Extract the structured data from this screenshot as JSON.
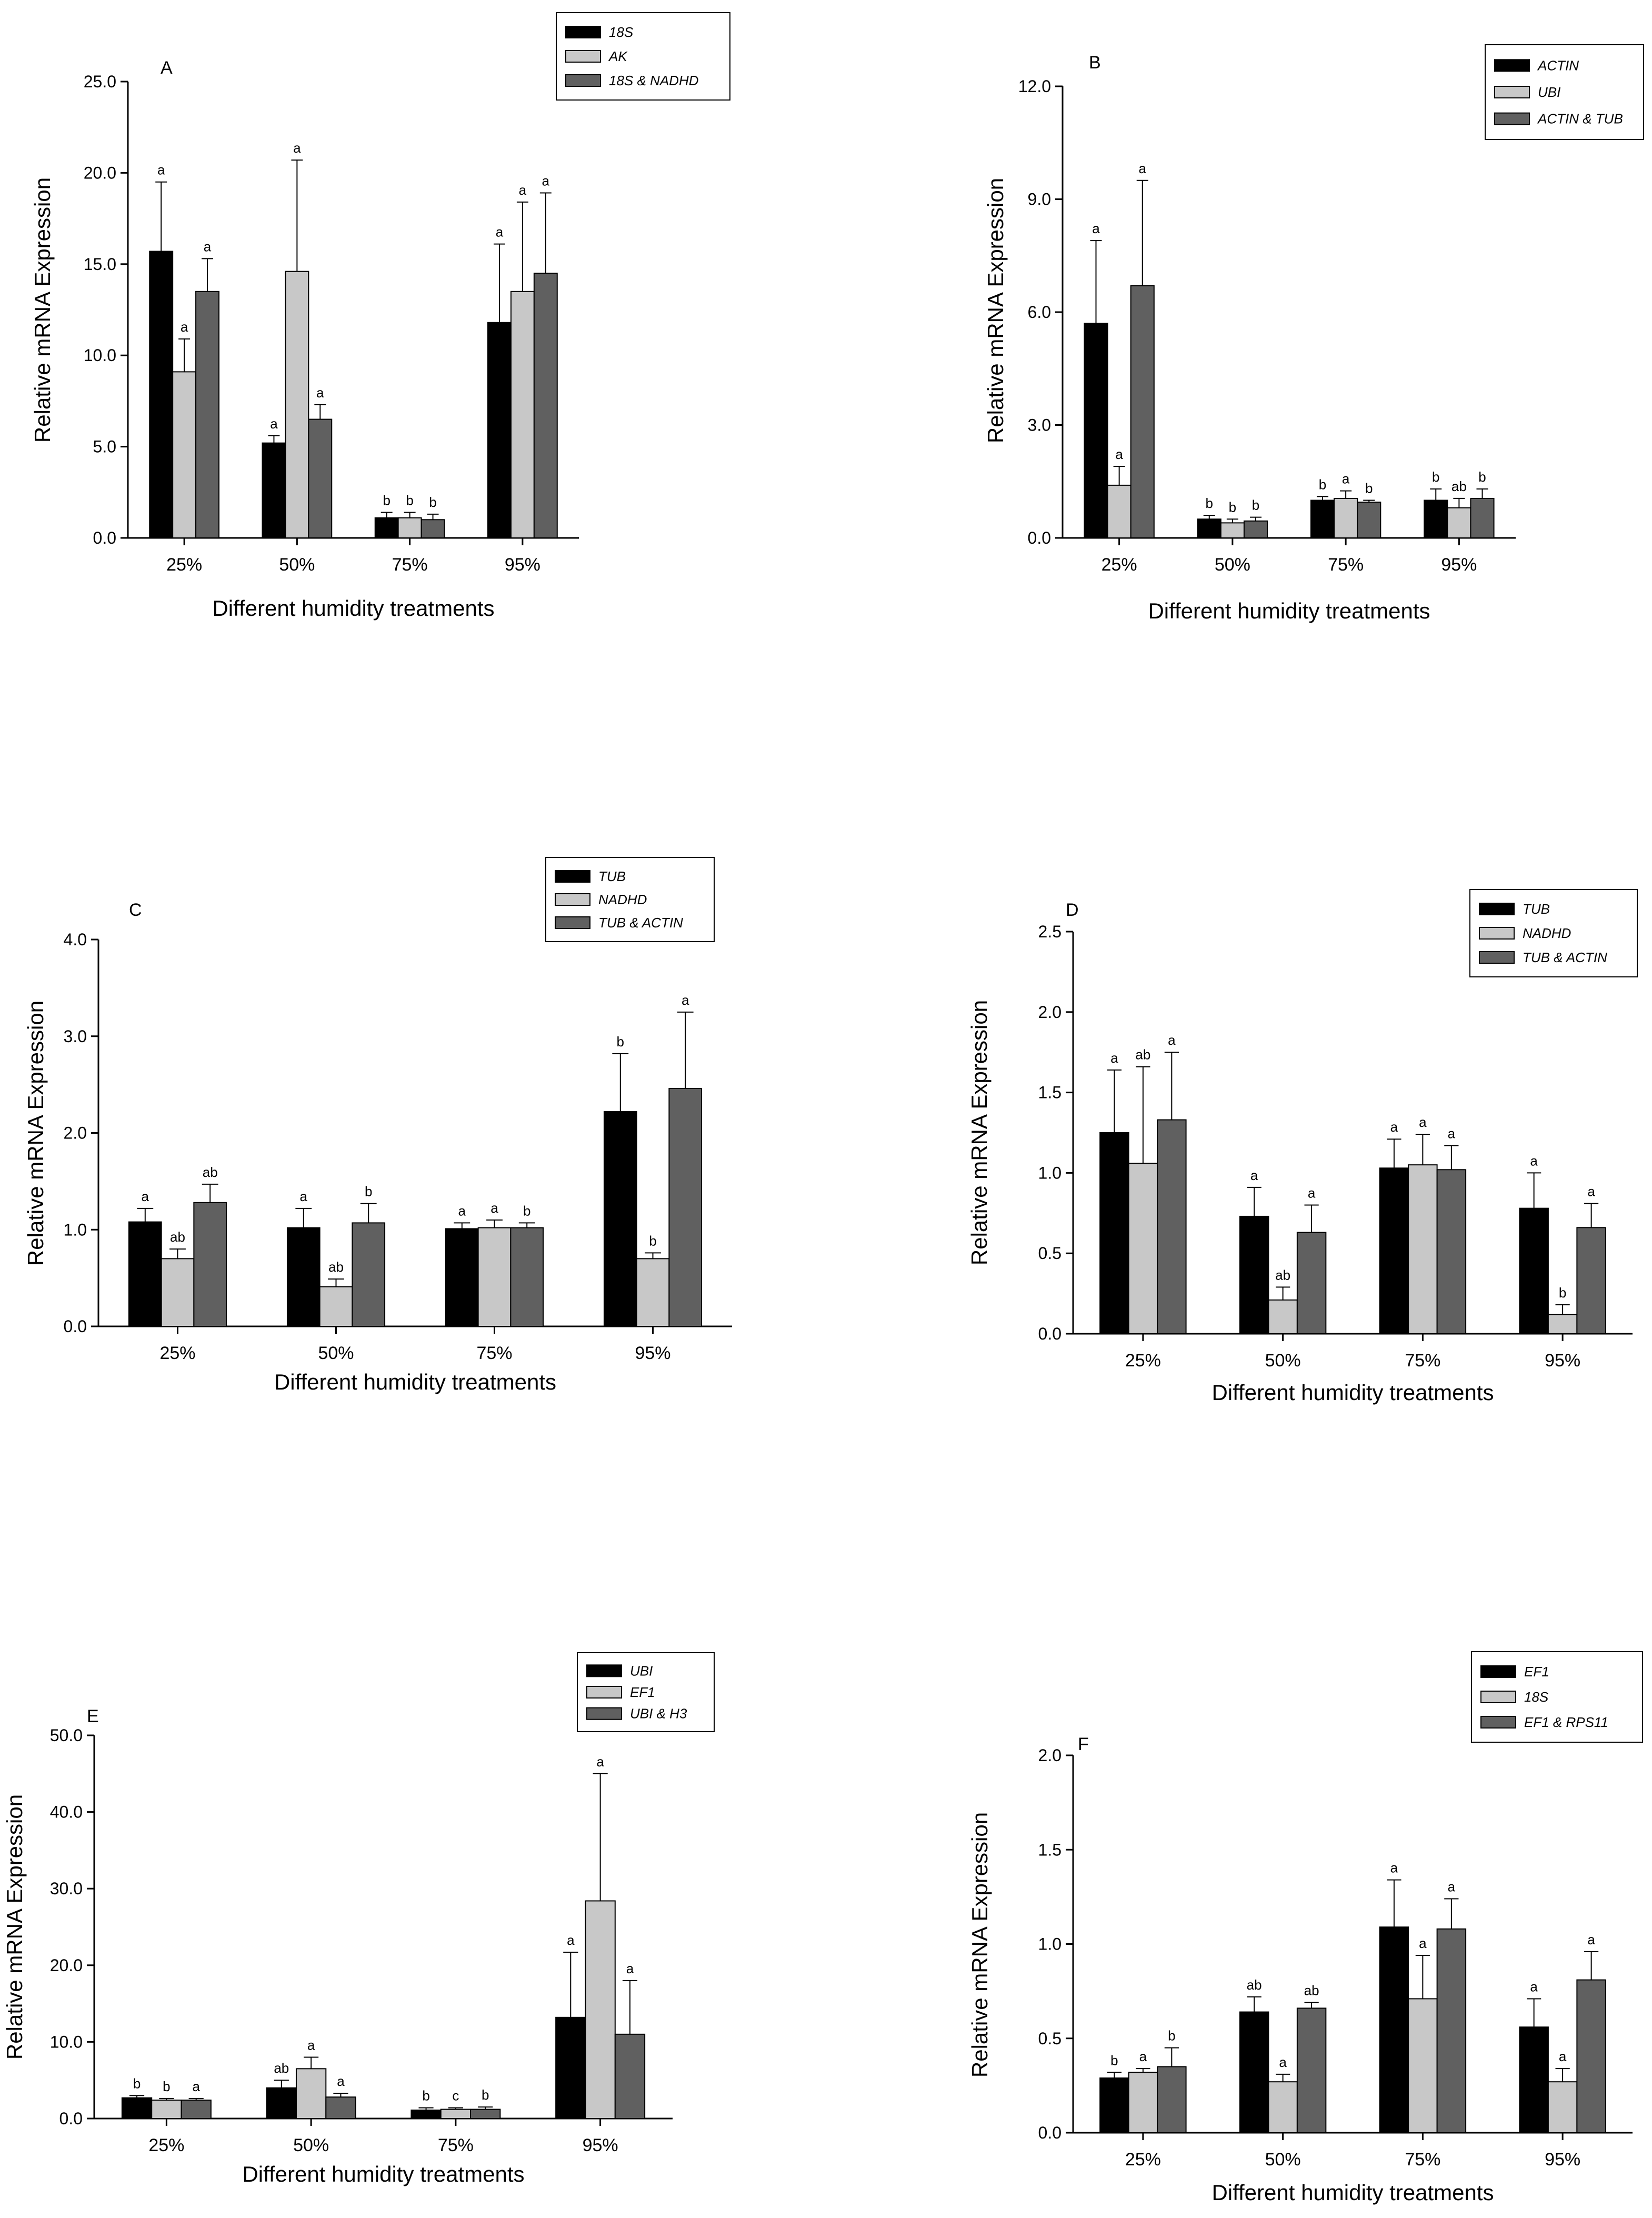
{
  "figure": {
    "colors": {
      "series1": "#000000",
      "series2": "#c8c8c8",
      "series3": "#606060"
    }
  },
  "chart_data": [
    {
      "type": "bar",
      "panel": "A",
      "categories": [
        "25%",
        "50%",
        "75%",
        "95%"
      ],
      "xlabel": "Different humidity treatments",
      "ylabel": "Relative mRNA Expression",
      "ylim": [
        0,
        25
      ],
      "yticks": [
        0,
        5,
        10,
        15,
        20,
        25
      ],
      "ytick_labels": [
        "0.0",
        "5.0",
        "10.0",
        "15.0",
        "20.0",
        "25.0"
      ],
      "legend_position": "top-right",
      "series": [
        {
          "name": "18S",
          "values": [
            15.7,
            5.2,
            1.1,
            11.8
          ],
          "errors": [
            3.8,
            0.4,
            0.3,
            4.3
          ],
          "letters": [
            "a",
            "a",
            "b",
            "a"
          ]
        },
        {
          "name": "AK",
          "values": [
            9.1,
            14.6,
            1.1,
            13.5
          ],
          "errors": [
            1.8,
            6.1,
            0.3,
            4.9
          ],
          "letters": [
            "a",
            "a",
            "b",
            "a"
          ]
        },
        {
          "name": "18S & NADHD",
          "values": [
            13.5,
            6.5,
            1.0,
            14.5
          ],
          "errors": [
            1.8,
            0.8,
            0.3,
            4.4
          ],
          "letters": [
            "a",
            "a",
            "b",
            "a"
          ]
        }
      ]
    },
    {
      "type": "bar",
      "panel": "B",
      "categories": [
        "25%",
        "50%",
        "75%",
        "95%"
      ],
      "xlabel": "Different humidity treatments",
      "ylabel": "Relative mRNA Expression",
      "ylim": [
        0,
        12
      ],
      "yticks": [
        0,
        3,
        6,
        9,
        12
      ],
      "ytick_labels": [
        "0.0",
        "3.0",
        "6.0",
        "9.0",
        "12.0"
      ],
      "legend_position": "top-right",
      "series": [
        {
          "name": "ACTIN",
          "values": [
            5.7,
            0.5,
            1.0,
            1.0
          ],
          "errors": [
            2.2,
            0.1,
            0.1,
            0.3
          ],
          "letters": [
            "a",
            "b",
            "b",
            "b"
          ]
        },
        {
          "name": "UBI",
          "values": [
            1.4,
            0.4,
            1.05,
            0.8
          ],
          "errors": [
            0.5,
            0.1,
            0.2,
            0.25
          ],
          "letters": [
            "a",
            "b",
            "a",
            "ab"
          ]
        },
        {
          "name": "ACTIN & TUB",
          "values": [
            6.7,
            0.45,
            0.95,
            1.05
          ],
          "errors": [
            2.8,
            0.1,
            0.05,
            0.25
          ],
          "letters": [
            "a",
            "b",
            "b",
            "b"
          ]
        }
      ]
    },
    {
      "type": "bar",
      "panel": "C",
      "categories": [
        "25%",
        "50%",
        "75%",
        "95%"
      ],
      "xlabel": "Different humidity treatments",
      "ylabel": "Relative mRNA Expression",
      "ylim": [
        0,
        4
      ],
      "yticks": [
        0,
        1,
        2,
        3,
        4
      ],
      "ytick_labels": [
        "0.0",
        "1.0",
        "2.0",
        "3.0",
        "4.0"
      ],
      "legend_position": "top-right",
      "series": [
        {
          "name": "TUB",
          "values": [
            1.08,
            1.02,
            1.01,
            2.22
          ],
          "errors": [
            0.14,
            0.2,
            0.06,
            0.6
          ],
          "letters": [
            "a",
            "a",
            "a",
            "b"
          ]
        },
        {
          "name": "NADHD",
          "values": [
            0.7,
            0.41,
            1.02,
            0.7
          ],
          "errors": [
            0.1,
            0.08,
            0.08,
            0.06
          ],
          "letters": [
            "ab",
            "ab",
            "a",
            "b"
          ]
        },
        {
          "name": "TUB & ACTIN",
          "values": [
            1.28,
            1.07,
            1.02,
            2.46
          ],
          "errors": [
            0.19,
            0.2,
            0.05,
            0.79
          ],
          "letters": [
            "ab",
            "b",
            "b",
            "a"
          ]
        }
      ]
    },
    {
      "type": "bar",
      "panel": "D",
      "categories": [
        "25%",
        "50%",
        "75%",
        "95%"
      ],
      "xlabel": "Different humidity treatments",
      "ylabel": "Relative mRNA Expression",
      "ylim": [
        0,
        2.5
      ],
      "yticks": [
        0,
        0.5,
        1,
        1.5,
        2,
        2.5
      ],
      "ytick_labels": [
        "0.0",
        "0.5",
        "1.0",
        "1.5",
        "2.0",
        "2.5"
      ],
      "legend_position": "top-right",
      "series": [
        {
          "name": "TUB",
          "values": [
            1.25,
            0.73,
            1.03,
            0.78
          ],
          "errors": [
            0.39,
            0.18,
            0.18,
            0.22
          ],
          "letters": [
            "a",
            "a",
            "a",
            "a"
          ]
        },
        {
          "name": "NADHD",
          "values": [
            1.06,
            0.21,
            1.05,
            0.12
          ],
          "errors": [
            0.6,
            0.08,
            0.19,
            0.06
          ],
          "letters": [
            "ab",
            "ab",
            "a",
            "b"
          ]
        },
        {
          "name": "TUB & ACTIN",
          "values": [
            1.33,
            0.63,
            1.02,
            0.66
          ],
          "errors": [
            0.42,
            0.17,
            0.15,
            0.15
          ],
          "letters": [
            "a",
            "a",
            "a",
            "a"
          ]
        }
      ]
    },
    {
      "type": "bar",
      "panel": "E",
      "categories": [
        "25%",
        "50%",
        "75%",
        "95%"
      ],
      "xlabel": "Different humidity treatments",
      "ylabel": "Relative mRNA Expression",
      "ylim": [
        0,
        50
      ],
      "yticks": [
        0,
        10,
        20,
        30,
        40,
        50
      ],
      "ytick_labels": [
        "0.0",
        "10.0",
        "20.0",
        "30.0",
        "40.0",
        "50.0"
      ],
      "legend_position": "top-right",
      "series": [
        {
          "name": "UBI",
          "values": [
            2.7,
            4.0,
            1.1,
            13.2
          ],
          "errors": [
            0.3,
            1.0,
            0.3,
            8.5
          ],
          "letters": [
            "b",
            "ab",
            "b",
            "a"
          ]
        },
        {
          "name": "EF1",
          "values": [
            2.4,
            6.5,
            1.2,
            28.4
          ],
          "errors": [
            0.2,
            1.5,
            0.2,
            16.6
          ],
          "letters": [
            "b",
            "a",
            "c",
            "a"
          ]
        },
        {
          "name": "UBI & H3",
          "values": [
            2.4,
            2.8,
            1.2,
            11.0
          ],
          "errors": [
            0.2,
            0.5,
            0.3,
            7.0
          ],
          "letters": [
            "a",
            "a",
            "b",
            "a"
          ]
        }
      ]
    },
    {
      "type": "bar",
      "panel": "F",
      "categories": [
        "25%",
        "50%",
        "75%",
        "95%"
      ],
      "xlabel": "Different humidity treatments",
      "ylabel": "Relative mRNA Expression",
      "ylim": [
        0,
        2
      ],
      "yticks": [
        0,
        0.5,
        1,
        1.5,
        2
      ],
      "ytick_labels": [
        "0.0",
        "0.5",
        "1.0",
        "1.5",
        "2.0"
      ],
      "legend_position": "top-right",
      "series": [
        {
          "name": "EF1",
          "values": [
            0.29,
            0.64,
            1.09,
            0.56
          ],
          "errors": [
            0.03,
            0.08,
            0.25,
            0.15
          ],
          "letters": [
            "b",
            "ab",
            "a",
            "a"
          ]
        },
        {
          "name": "18S",
          "values": [
            0.32,
            0.27,
            0.71,
            0.27
          ],
          "errors": [
            0.02,
            0.04,
            0.23,
            0.07
          ],
          "letters": [
            "a",
            "a",
            "a",
            "a"
          ]
        },
        {
          "name": "EF1 & RPS11",
          "values": [
            0.35,
            0.66,
            1.08,
            0.81
          ],
          "errors": [
            0.1,
            0.03,
            0.16,
            0.15
          ],
          "letters": [
            "b",
            "ab",
            "a",
            "a"
          ]
        }
      ]
    }
  ]
}
